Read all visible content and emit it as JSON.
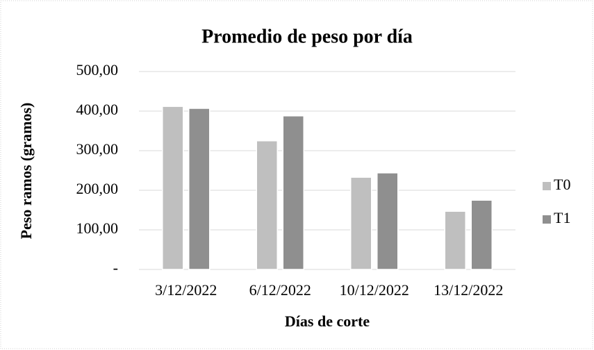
{
  "chart_data": {
    "type": "bar",
    "title": "Promedio de peso por día",
    "x_label": "Días de corte",
    "y_label": "Peso ramos (gramos)",
    "categories": [
      "3/12/2022",
      "6/12/2022",
      "10/12/2022",
      "13/12/2022"
    ],
    "series": [
      {
        "name": "T0",
        "color": "#bfbfbf",
        "values": [
          412,
          325,
          233,
          147
        ]
      },
      {
        "name": "T1",
        "color": "#8f8f8f",
        "values": [
          407,
          388,
          244,
          175
        ]
      }
    ],
    "ylim": [
      0,
      500
    ],
    "yticks": [
      {
        "value": 0,
        "label": "-"
      },
      {
        "value": 100,
        "label": "100,00"
      },
      {
        "value": 200,
        "label": "200,00"
      },
      {
        "value": 300,
        "label": "300,00"
      },
      {
        "value": 400,
        "label": "400,00"
      },
      {
        "value": 500,
        "label": "500,00"
      }
    ],
    "grid": true,
    "legend": "right"
  }
}
